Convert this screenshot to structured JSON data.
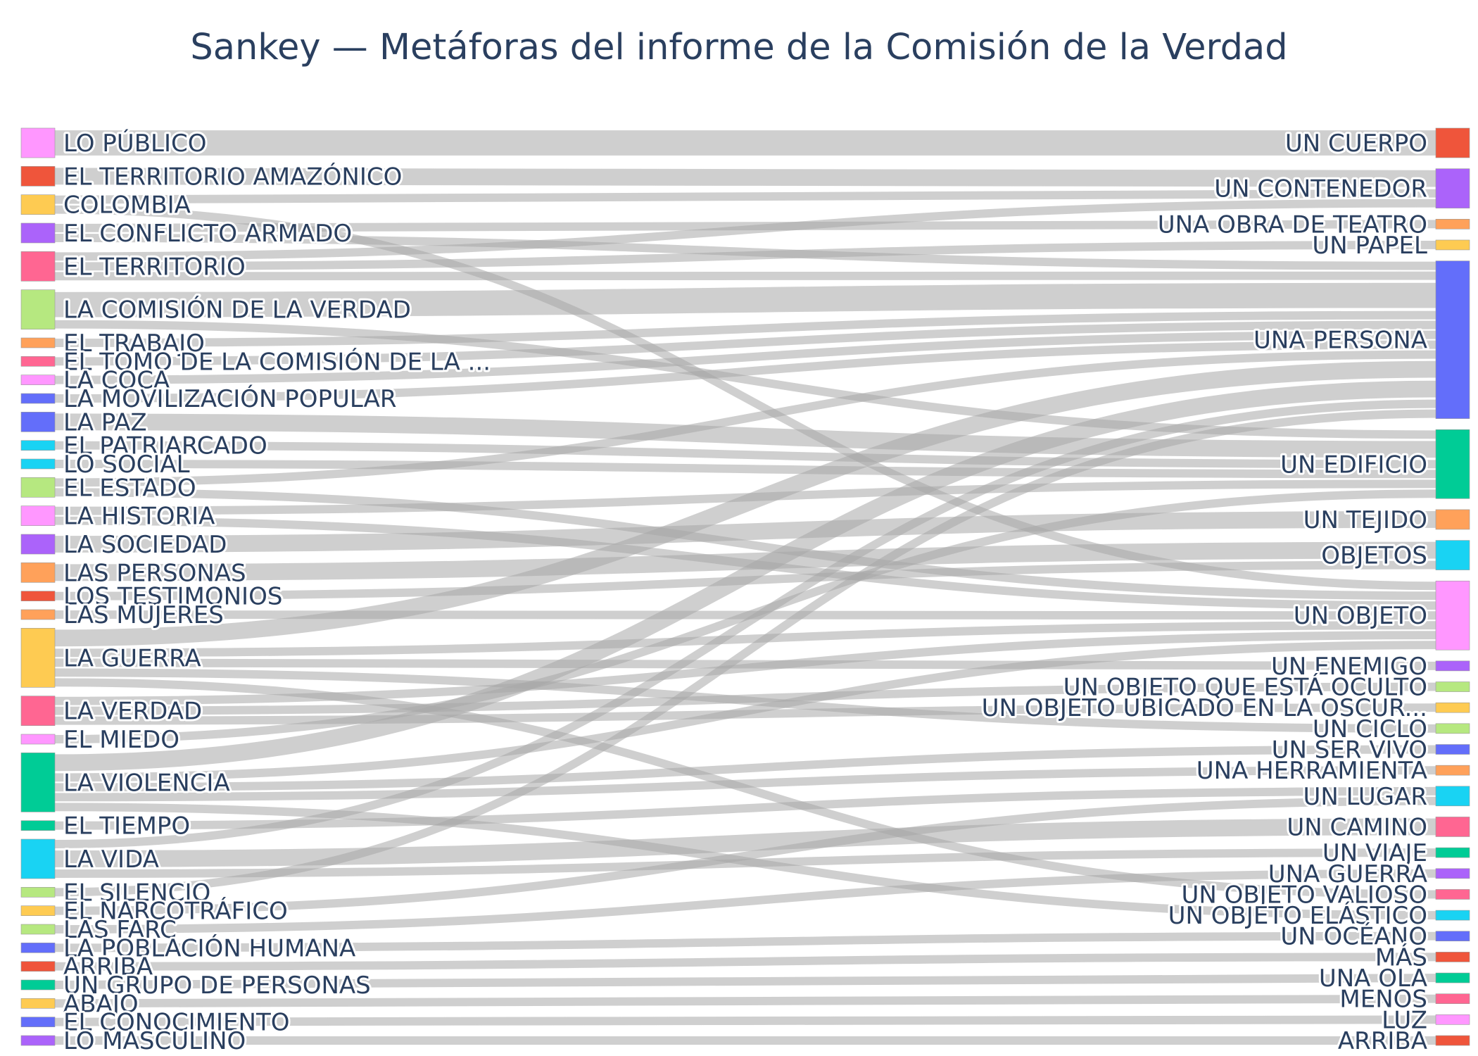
{
  "title": "Sankey — Metáforas del informe de la Comisión de la Verdad",
  "palette": [
    "#EF553B",
    "#636EFA",
    "#00CC96",
    "#AB63FA",
    "#FFA15A",
    "#19D3F3",
    "#FF6692",
    "#B6E880",
    "#FF97FF",
    "#FECB52"
  ],
  "link_color": "#a8a8a8",
  "chart_data": {
    "type": "sankey",
    "sources": [
      {
        "label": "LO PÚBLICO",
        "color": "#FF97FF"
      },
      {
        "label": "EL TERRITORIO AMAZÓNICO",
        "color": "#EF553B"
      },
      {
        "label": "COLOMBIA",
        "color": "#FECB52"
      },
      {
        "label": "EL CONFLICTO ARMADO",
        "color": "#AB63FA"
      },
      {
        "label": "EL TERRITORIO",
        "color": "#FF6692"
      },
      {
        "label": "LA COMISIÓN DE LA VERDAD",
        "color": "#B6E880"
      },
      {
        "label": "EL TRABAJO",
        "color": "#FFA15A"
      },
      {
        "label": "EL TOMO DE LA COMISIÓN DE LA ...",
        "color": "#FF6692"
      },
      {
        "label": "LA COCA",
        "color": "#FF97FF"
      },
      {
        "label": "LA MOVILIZACIÓN POPULAR",
        "color": "#636EFA"
      },
      {
        "label": "LA PAZ",
        "color": "#636EFA"
      },
      {
        "label": "EL PATRIARCADO",
        "color": "#19D3F3"
      },
      {
        "label": "LO SOCIAL",
        "color": "#19D3F3"
      },
      {
        "label": "EL ESTADO",
        "color": "#B6E880"
      },
      {
        "label": "LA HISTORIA",
        "color": "#FF97FF"
      },
      {
        "label": "LA SOCIEDAD",
        "color": "#AB63FA"
      },
      {
        "label": "LAS PERSONAS",
        "color": "#FFA15A"
      },
      {
        "label": "LOS TESTIMONIOS",
        "color": "#EF553B"
      },
      {
        "label": "LAS MUJERES",
        "color": "#FFA15A"
      },
      {
        "label": "LA GUERRA",
        "color": "#FECB52"
      },
      {
        "label": "LA VERDAD",
        "color": "#FF6692"
      },
      {
        "label": "EL MIEDO",
        "color": "#FF97FF"
      },
      {
        "label": "LA VIOLENCIA",
        "color": "#00CC96"
      },
      {
        "label": "EL TIEMPO",
        "color": "#00CC96"
      },
      {
        "label": "LA VIDA",
        "color": "#19D3F3"
      },
      {
        "label": "EL SILENCIO",
        "color": "#B6E880"
      },
      {
        "label": "EL NARCOTRÁFICO",
        "color": "#FECB52"
      },
      {
        "label": "LAS FARC",
        "color": "#B6E880"
      },
      {
        "label": "LA POBLACIÓN HUMANA",
        "color": "#636EFA"
      },
      {
        "label": "ARRIBA",
        "color": "#EF553B"
      },
      {
        "label": "UN GRUPO DE PERSONAS",
        "color": "#00CC96"
      },
      {
        "label": "ABAJO",
        "color": "#FECB52"
      },
      {
        "label": "EL CONOCIMIENTO",
        "color": "#636EFA"
      },
      {
        "label": "LO MASCULINO",
        "color": "#AB63FA"
      }
    ],
    "targets": [
      {
        "label": "UN CUERPO",
        "color": "#EF553B"
      },
      {
        "label": "UN CONTENEDOR",
        "color": "#AB63FA"
      },
      {
        "label": "UNA OBRA DE TEATRO",
        "color": "#FFA15A"
      },
      {
        "label": "UN PAPEL",
        "color": "#FECB52"
      },
      {
        "label": "UNA PERSONA",
        "color": "#636EFA"
      },
      {
        "label": "UN EDIFICIO",
        "color": "#00CC96"
      },
      {
        "label": "UN TEJIDO",
        "color": "#FFA15A"
      },
      {
        "label": "OBJETOS",
        "color": "#19D3F3"
      },
      {
        "label": "UN OBJETO",
        "color": "#FF97FF"
      },
      {
        "label": "UN ENEMIGO",
        "color": "#AB63FA"
      },
      {
        "label": "UN OBJETO QUE ESTÁ OCULTO",
        "color": "#B6E880"
      },
      {
        "label": "UN OBJETO UBICADO EN LA OSCUR...",
        "color": "#FECB52"
      },
      {
        "label": "UN CICLO",
        "color": "#B6E880"
      },
      {
        "label": "UN SER VIVO",
        "color": "#636EFA"
      },
      {
        "label": "UNA HERRAMIENTA",
        "color": "#FFA15A"
      },
      {
        "label": "UN LUGAR",
        "color": "#19D3F3"
      },
      {
        "label": "UN CAMINO",
        "color": "#FF6692"
      },
      {
        "label": "UN VIAJE",
        "color": "#00CC96"
      },
      {
        "label": "UNA GUERRA",
        "color": "#AB63FA"
      },
      {
        "label": "UN OBJETO VALIOSO",
        "color": "#FF6692"
      },
      {
        "label": "UN OBJETO ELÁSTICO",
        "color": "#19D3F3"
      },
      {
        "label": "UN OCÉANO",
        "color": "#636EFA"
      },
      {
        "label": "MÁS",
        "color": "#EF553B"
      },
      {
        "label": "UNA OLA",
        "color": "#00CC96"
      },
      {
        "label": "MENOS",
        "color": "#FF6692"
      },
      {
        "label": "LUZ",
        "color": "#FF97FF"
      },
      {
        "label": "ARRIBA",
        "color": "#EF553B"
      }
    ],
    "links": [
      {
        "source": "LO PÚBLICO",
        "target": "UN CUERPO",
        "value": 3
      },
      {
        "source": "EL TERRITORIO AMAZÓNICO",
        "target": "UN CONTENEDOR",
        "value": 2
      },
      {
        "source": "COLOMBIA",
        "target": "UN CONTENEDOR",
        "value": 1
      },
      {
        "source": "COLOMBIA",
        "target": "UN OBJETO",
        "value": 1
      },
      {
        "source": "EL CONFLICTO ARMADO",
        "target": "UNA OBRA DE TEATRO",
        "value": 1
      },
      {
        "source": "EL CONFLICTO ARMADO",
        "target": "UNA PERSONA",
        "value": 1
      },
      {
        "source": "EL TERRITORIO",
        "target": "UN CONTENEDOR",
        "value": 1
      },
      {
        "source": "EL TERRITORIO",
        "target": "UN PAPEL",
        "value": 1
      },
      {
        "source": "EL TERRITORIO",
        "target": "UNA PERSONA",
        "value": 1
      },
      {
        "source": "LA COMISIÓN DE LA VERDAD",
        "target": "UNA PERSONA",
        "value": 3
      },
      {
        "source": "LA COMISIÓN DE LA VERDAD",
        "target": "UN EDIFICIO",
        "value": 1
      },
      {
        "source": "EL TRABAJO",
        "target": "UNA PERSONA",
        "value": 1
      },
      {
        "source": "EL TOMO DE LA COMISIÓN DE LA ...",
        "target": "UNA PERSONA",
        "value": 1
      },
      {
        "source": "LA COCA",
        "target": "UNA PERSONA",
        "value": 1
      },
      {
        "source": "LA MOVILIZACIÓN POPULAR",
        "target": "UNA PERSONA",
        "value": 1
      },
      {
        "source": "LA PAZ",
        "target": "UN EDIFICIO",
        "value": 2
      },
      {
        "source": "EL PATRIARCADO",
        "target": "UN EDIFICIO",
        "value": 1
      },
      {
        "source": "LO SOCIAL",
        "target": "UN EDIFICIO",
        "value": 1
      },
      {
        "source": "EL ESTADO",
        "target": "UNA PERSONA",
        "value": 1
      },
      {
        "source": "EL ESTADO",
        "target": "UN OBJETO",
        "value": 1
      },
      {
        "source": "LA HISTORIA",
        "target": "UN EDIFICIO",
        "value": 1
      },
      {
        "source": "LA HISTORIA",
        "target": "UN OBJETO",
        "value": 1
      },
      {
        "source": "LA SOCIEDAD",
        "target": "UN TEJIDO",
        "value": 2
      },
      {
        "source": "LAS PERSONAS",
        "target": "OBJETOS",
        "value": 2
      },
      {
        "source": "LOS TESTIMONIOS",
        "target": "OBJETOS",
        "value": 1
      },
      {
        "source": "LAS MUJERES",
        "target": "UN OBJETO",
        "value": 1
      },
      {
        "source": "LA GUERRA",
        "target": "UNA PERSONA",
        "value": 2
      },
      {
        "source": "LA GUERRA",
        "target": "UN ENEMIGO",
        "value": 1
      },
      {
        "source": "LA GUERRA",
        "target": "UN OBJETO",
        "value": 1
      },
      {
        "source": "LA GUERRA",
        "target": "UN CICLO",
        "value": 1
      },
      {
        "source": "LA GUERRA",
        "target": "UN OBJETO VALIOSO",
        "value": 1
      },
      {
        "source": "LA VERDAD",
        "target": "UN OBJETO",
        "value": 1
      },
      {
        "source": "LA VERDAD",
        "target": "UN OBJETO QUE ESTÁ OCULTO",
        "value": 1
      },
      {
        "source": "LA VERDAD",
        "target": "UN OBJETO UBICADO EN LA OSCUR...",
        "value": 1
      },
      {
        "source": "EL MIEDO",
        "target": "UN EDIFICIO",
        "value": 1
      },
      {
        "source": "LA VIOLENCIA",
        "target": "UNA PERSONA",
        "value": 2
      },
      {
        "source": "LA VIOLENCIA",
        "target": "UN OBJETO",
        "value": 1
      },
      {
        "source": "LA VIOLENCIA",
        "target": "UN SER VIVO",
        "value": 1
      },
      {
        "source": "LA VIOLENCIA",
        "target": "UNA HERRAMIENTA",
        "value": 1
      },
      {
        "source": "LA VIOLENCIA",
        "target": "UN OBJETO ELÁSTICO",
        "value": 1
      },
      {
        "source": "EL TIEMPO",
        "target": "UN LUGAR",
        "value": 1
      },
      {
        "source": "LA VIDA",
        "target": "UNA PERSONA",
        "value": 1
      },
      {
        "source": "LA VIDA",
        "target": "UN CAMINO",
        "value": 2
      },
      {
        "source": "LA VIDA",
        "target": "UN VIAJE",
        "value": 1
      },
      {
        "source": "EL SILENCIO",
        "target": "UNA PERSONA",
        "value": 1
      },
      {
        "source": "EL NARCOTRÁFICO",
        "target": "UN LUGAR",
        "value": 1
      },
      {
        "source": "LAS FARC",
        "target": "UNA GUERRA",
        "value": 1
      },
      {
        "source": "LA POBLACIÓN HUMANA",
        "target": "UN OCÉANO",
        "value": 1
      },
      {
        "source": "ARRIBA",
        "target": "MÁS",
        "value": 1
      },
      {
        "source": "UN GRUPO DE PERSONAS",
        "target": "UNA OLA",
        "value": 1
      },
      {
        "source": "ABAJO",
        "target": "MENOS",
        "value": 1
      },
      {
        "source": "EL CONOCIMIENTO",
        "target": "LUZ",
        "value": 1
      },
      {
        "source": "LO MASCULINO",
        "target": "ARRIBA",
        "value": 1
      }
    ]
  }
}
